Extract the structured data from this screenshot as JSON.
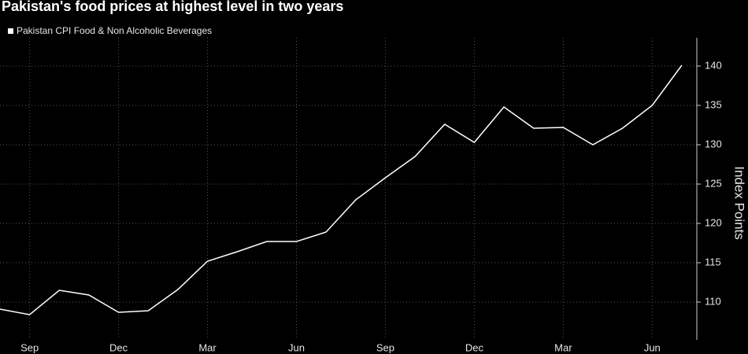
{
  "chart_data": {
    "type": "line",
    "title": "Pakistan's food prices at highest level in two years",
    "y_label": "Index Points",
    "categories": [
      null,
      "Sep",
      null,
      null,
      "Dec",
      null,
      null,
      "Mar",
      null,
      null,
      "Jun",
      null,
      null,
      "Sep",
      null,
      null,
      "Dec",
      null,
      null,
      "Mar",
      null,
      null,
      "Jun",
      null
    ],
    "series": [
      {
        "name": "Pakistan CPI Food & Non Alcoholic Beverages",
        "color": "#ffffff",
        "values": [
          109.1,
          108.4,
          111.5,
          110.9,
          108.7,
          108.9,
          111.6,
          115.2,
          116.4,
          117.7,
          117.7,
          118.9,
          123.0,
          125.8,
          128.5,
          132.6,
          130.3,
          134.8,
          132.1,
          132.2,
          130.0,
          132.1,
          135.0,
          140.1
        ]
      }
    ],
    "ylim": [
      105.2,
      143.6
    ],
    "yticks": [
      110,
      115,
      120,
      125,
      130,
      135,
      140
    ],
    "grid": true
  }
}
